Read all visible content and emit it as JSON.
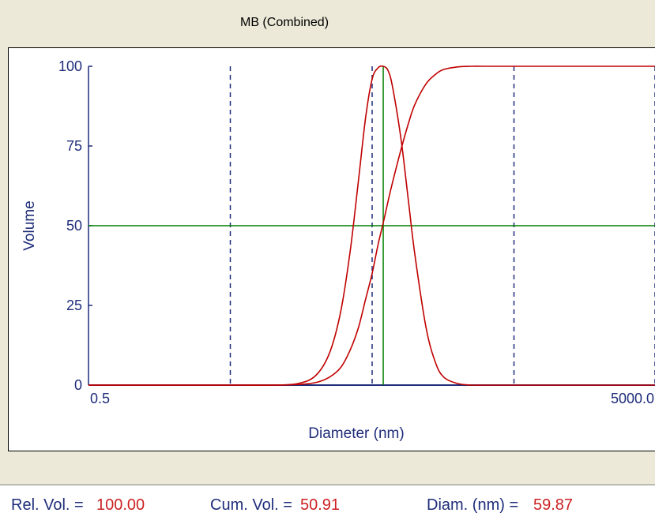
{
  "title": "MB (Combined)",
  "status": {
    "rel_vol_label": "Rel. Vol. =",
    "rel_vol_value": "100.00",
    "cum_vol_label": "Cum. Vol. =",
    "cum_vol_value": "50.91",
    "diam_label": "Diam. (nm) =",
    "diam_value": "59.87"
  },
  "colors": {
    "axis": "#1f2d7a",
    "series": "#c00000",
    "cursor": "#008000",
    "grid": "#1f2d7a",
    "label": "#1f2d7a"
  },
  "chart_data": {
    "type": "line",
    "title": "MB (Combined)",
    "xlabel": "Diameter (nm)",
    "ylabel": "Volume",
    "x_scale": "log",
    "xlim": [
      0.5,
      5000
    ],
    "ylim": [
      0,
      100
    ],
    "x_tick_labels": [
      "0.5",
      "5000.0"
    ],
    "y_ticks": [
      0,
      25,
      50,
      75,
      100
    ],
    "vertical_gridlines_x": [
      5,
      50,
      500,
      5000
    ],
    "grid_style": "dashed",
    "cursor": {
      "x": 59.87,
      "y": 50
    },
    "series": [
      {
        "x": [
          0.5,
          5,
          10,
          15,
          20,
          25,
          30,
          35,
          40,
          45,
          50,
          55,
          59.87,
          65,
          70,
          80,
          90,
          100,
          120,
          140,
          160,
          200,
          250,
          300,
          400,
          500,
          5000
        ],
        "y": [
          0,
          0,
          0,
          0.5,
          3,
          10,
          23,
          42,
          64,
          84,
          96,
          99.5,
          100,
          98.5,
          93,
          77,
          58,
          41,
          18,
          7,
          2.5,
          0.5,
          0,
          0,
          0,
          0,
          0
        ]
      },
      {
        "x": [
          0.5,
          5,
          10,
          15,
          20,
          25,
          30,
          35,
          40,
          45,
          50,
          55,
          59.87,
          65,
          70,
          80,
          90,
          100,
          120,
          140,
          160,
          200,
          250,
          300,
          400,
          500,
          5000
        ],
        "y": [
          0,
          0,
          0,
          0.2,
          0.8,
          2.5,
          5.5,
          11,
          18,
          27,
          35,
          44,
          50.91,
          58,
          64,
          74,
          82,
          88,
          94.5,
          97.5,
          99,
          99.8,
          100,
          100,
          100,
          100,
          100
        ]
      }
    ]
  }
}
